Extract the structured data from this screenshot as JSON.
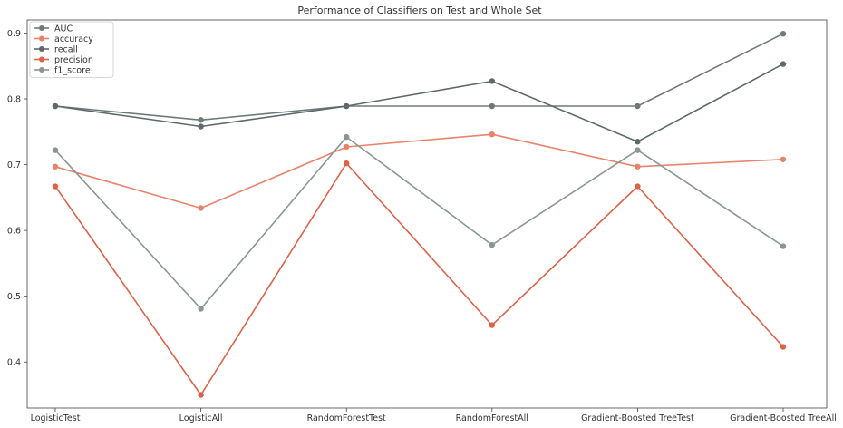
{
  "chart_data": {
    "type": "line",
    "title": "Performance of Classifiers on Test and Whole Set",
    "xlabel": "",
    "ylabel": "",
    "categories": [
      "LogisticTest",
      "LogisticAll",
      "RandomForestTest",
      "RandomForestAll",
      "Gradient-Boosted TreeTest",
      "Gradient-Boosted TreeAll"
    ],
    "ylim": [
      0.33,
      0.92
    ],
    "yticks": [
      0.4,
      0.5,
      0.6,
      0.7,
      0.8,
      0.9
    ],
    "ytick_labels": [
      "0.4",
      "0.5",
      "0.6",
      "0.7",
      "0.8",
      "0.9"
    ],
    "grid": false,
    "legend_position": "top-left",
    "series": [
      {
        "name": "AUC",
        "color": "#6e7a7a",
        "values": [
          0.789,
          0.768,
          0.789,
          0.789,
          0.789,
          0.899
        ]
      },
      {
        "name": "accuracy",
        "color": "#e8836a",
        "values": [
          0.697,
          0.634,
          0.727,
          0.746,
          0.697,
          0.708
        ]
      },
      {
        "name": "recall",
        "color": "#5e6a6a",
        "values": [
          0.789,
          0.758,
          0.789,
          0.827,
          0.735,
          0.853
        ]
      },
      {
        "name": "precision",
        "color": "#dd6247",
        "values": [
          0.667,
          0.35,
          0.702,
          0.456,
          0.667,
          0.423
        ]
      },
      {
        "name": "f1_score",
        "color": "#8a9696",
        "values": [
          0.722,
          0.481,
          0.742,
          0.578,
          0.722,
          0.576
        ]
      }
    ]
  }
}
